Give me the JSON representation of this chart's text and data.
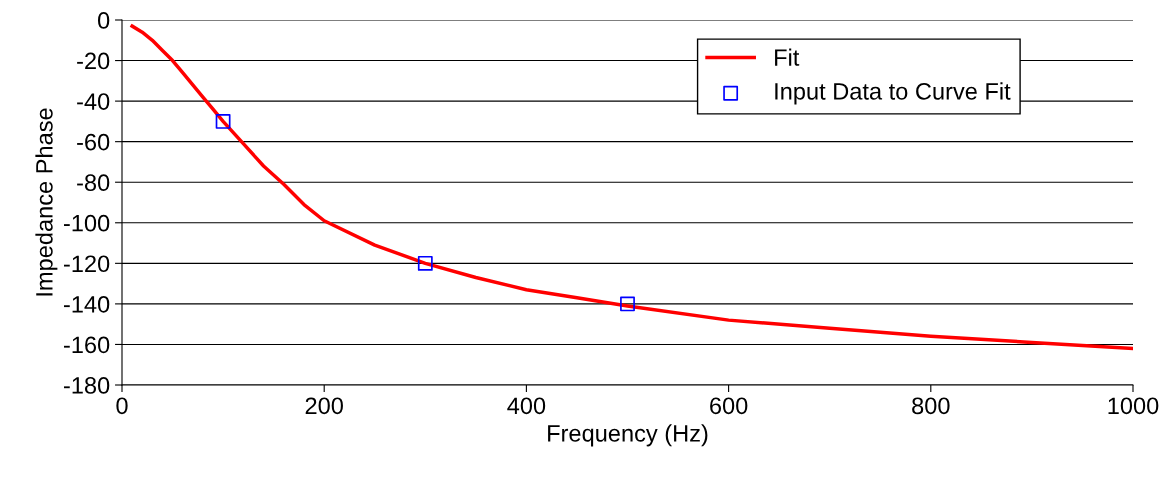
{
  "chart_data": {
    "type": "line",
    "xlabel": "Frequency (Hz)",
    "ylabel": "Impedance Phase",
    "xlim": [
      0,
      1000
    ],
    "xticks": [
      0,
      200,
      400,
      600,
      800,
      1000
    ],
    "ylim": [
      -180,
      0
    ],
    "yticks": [
      -180,
      -160,
      -140,
      -120,
      -100,
      -80,
      -60,
      -40,
      -20,
      0
    ],
    "grid": "y",
    "legend": "top right",
    "series": [
      {
        "name": "Fit",
        "color": "#ff0000",
        "marker": "none",
        "line_style": "solid",
        "x": [
          10,
          20,
          30,
          40,
          50,
          60,
          70,
          80,
          90,
          100,
          120,
          140,
          160,
          180,
          200,
          250,
          300,
          350,
          400,
          450,
          500,
          600,
          700,
          800,
          900,
          1000
        ],
        "values": [
          -3,
          -6,
          -10,
          -15,
          -20,
          -26,
          -32,
          -38,
          -44,
          -50,
          -61,
          -72,
          -81,
          -91,
          -99,
          -111,
          -120,
          -127,
          -133,
          -137,
          -141,
          -148,
          -152,
          -156,
          -159,
          -162
        ]
      },
      {
        "name": "Input Data to Curve Fit",
        "type": "scatter",
        "color": "#0000ff",
        "marker": "square",
        "x": [
          100,
          300,
          500
        ],
        "values": [
          -50,
          -120,
          -140
        ]
      }
    ]
  }
}
